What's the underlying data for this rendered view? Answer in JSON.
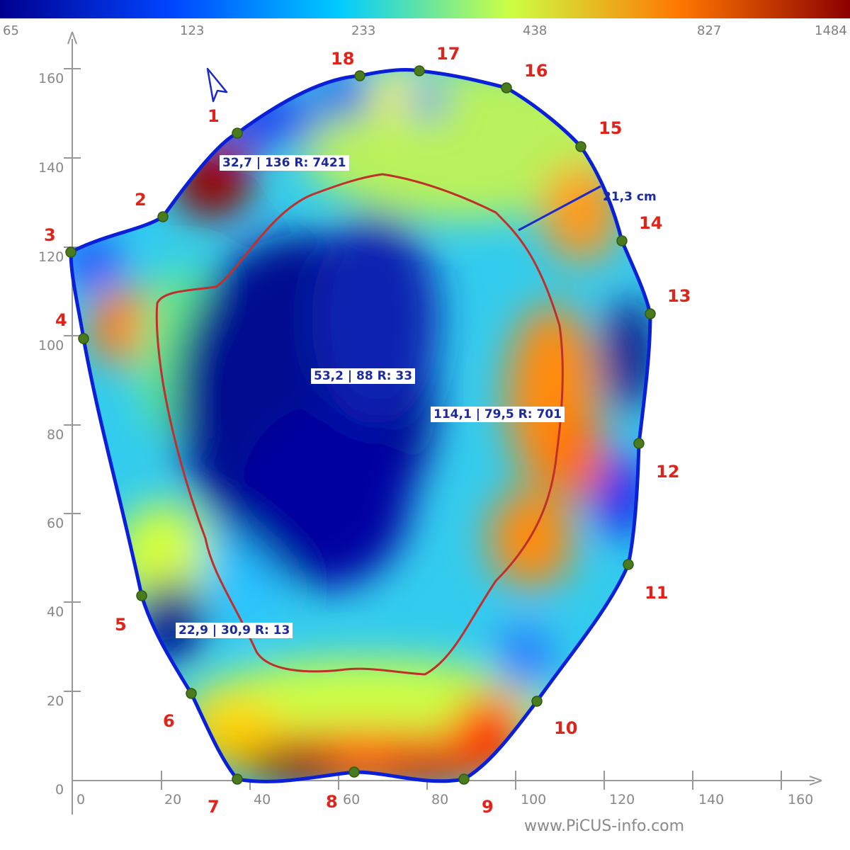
{
  "colorbar": {
    "ticks": [
      "65",
      "123",
      "233",
      "438",
      "827",
      "1484"
    ],
    "colors": [
      "#00008f",
      "#0044ff",
      "#00ccff",
      "#ccff44",
      "#ff7700",
      "#8b0000"
    ]
  },
  "axes": {
    "x_ticks": [
      "0",
      "20",
      "40",
      "60",
      "80",
      "100",
      "120",
      "140",
      "160"
    ],
    "y_ticks": [
      "0",
      "20",
      "40",
      "60",
      "80",
      "100",
      "120",
      "140",
      "160"
    ]
  },
  "sensors": [
    "1",
    "2",
    "3",
    "4",
    "5",
    "6",
    "7",
    "8",
    "9",
    "10",
    "11",
    "12",
    "13",
    "14",
    "15",
    "16",
    "17",
    "18"
  ],
  "annotations": {
    "a1": "32,7 | 136  R: 7421",
    "a2": "53,2 | 88  R: 33",
    "a3": "114,1 | 79,5  R: 701",
    "a4": "22,9 | 30,9  R: 13"
  },
  "distance": "21,3 cm",
  "watermark": "www.PiCUS-info.com",
  "colors": {
    "outline": "#0a1fd8",
    "inner_curve": "#c0302a",
    "sensor_dot": "#4a7c1f",
    "label_red": "#e0231b",
    "annotation_text": "#1b2a9c"
  }
}
